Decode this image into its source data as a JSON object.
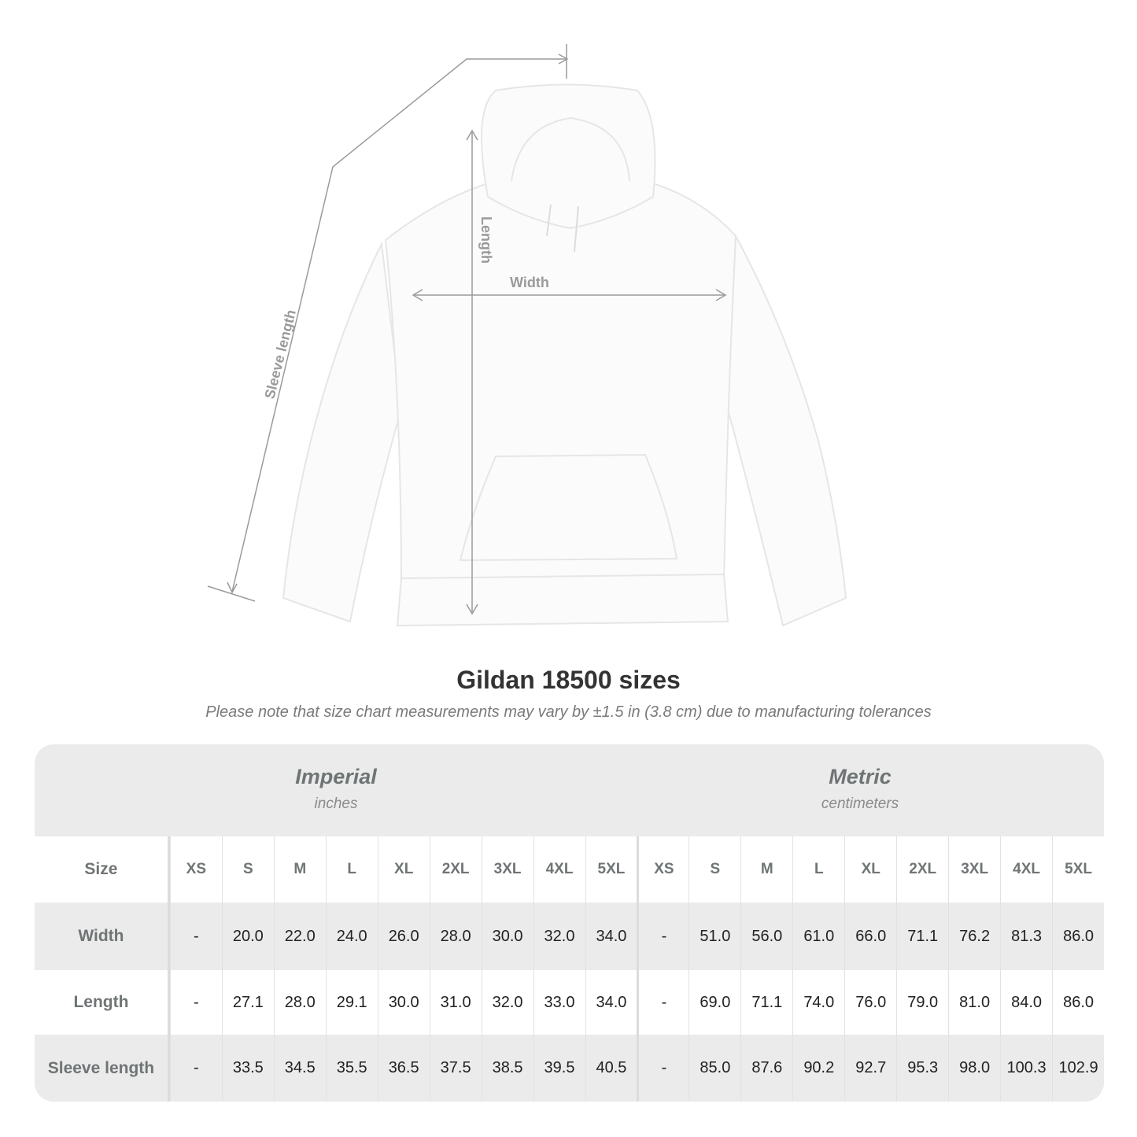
{
  "diagram": {
    "labels": {
      "sleeve": "Sleeve length",
      "length": "Length",
      "width": "Width"
    }
  },
  "title": "Gildan 18500 sizes",
  "subtitle": "Please note that size chart measurements may vary by ±1.5 in (3.8 cm) due to manufacturing tolerances",
  "table": {
    "imperial": {
      "name": "Imperial",
      "unit": "inches"
    },
    "metric": {
      "name": "Metric",
      "unit": "centimeters"
    },
    "size_label": "Size",
    "sizes": [
      "XS",
      "S",
      "M",
      "L",
      "XL",
      "2XL",
      "3XL",
      "4XL",
      "5XL"
    ],
    "rows": [
      {
        "label": "Width",
        "imperial": [
          "-",
          "20.0",
          "22.0",
          "24.0",
          "26.0",
          "28.0",
          "30.0",
          "32.0",
          "34.0"
        ],
        "metric": [
          "-",
          "51.0",
          "56.0",
          "61.0",
          "66.0",
          "71.1",
          "76.2",
          "81.3",
          "86.0"
        ]
      },
      {
        "label": "Length",
        "imperial": [
          "-",
          "27.1",
          "28.0",
          "29.1",
          "30.0",
          "31.0",
          "32.0",
          "33.0",
          "34.0"
        ],
        "metric": [
          "-",
          "69.0",
          "71.1",
          "74.0",
          "76.0",
          "79.0",
          "81.0",
          "84.0",
          "86.0"
        ]
      },
      {
        "label": "Sleeve length",
        "imperial": [
          "-",
          "33.5",
          "34.5",
          "35.5",
          "36.5",
          "37.5",
          "38.5",
          "39.5",
          "40.5"
        ],
        "metric": [
          "-",
          "85.0",
          "87.6",
          "90.2",
          "92.7",
          "95.3",
          "98.0",
          "100.3",
          "102.9"
        ]
      }
    ]
  },
  "colors": {
    "header_text": "#6f7475",
    "band": "#ebebeb",
    "line": "#9a9a9a"
  }
}
